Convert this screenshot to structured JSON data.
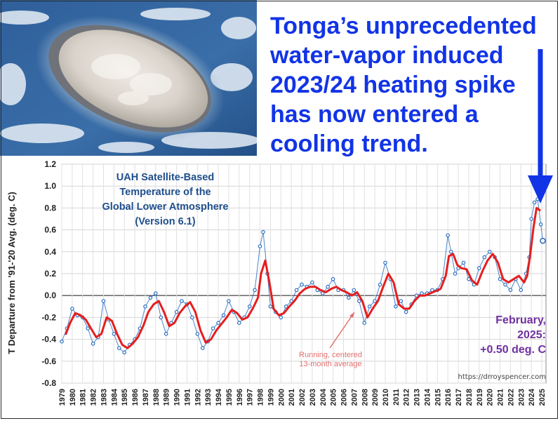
{
  "headline": {
    "lines": [
      "Tonga’s unprecedented",
      "water-vapor induced",
      "2023/24 heating spike",
      "has now entered a",
      "cooling trend."
    ],
    "color": "#1234e6"
  },
  "annotation": {
    "lines": [
      "UAH Satellite-Based",
      "Temperature of the",
      "Global Lower Atmosphere",
      "(Version 6.1)"
    ]
  },
  "current_value": {
    "lines": [
      "February,",
      "2025:",
      "+0.50 deg. C"
    ],
    "color": "#7030a0"
  },
  "running_label": {
    "lines": [
      "Running, centered",
      "13-month average"
    ]
  },
  "credit": "https://drroyspencer.com",
  "chart_data": {
    "type": "line",
    "title": "UAH Satellite-Based Temperature of the Global Lower Atmosphere (Version 6.1)",
    "ylabel": "T Departure from '91-'20 Avg. (deg. C)",
    "xlabel": "",
    "ylim": [
      -0.8,
      1.2
    ],
    "yticks": [
      "1.2",
      "1.0",
      "0.8",
      "0.6",
      "0.4",
      "0.2",
      "0.0",
      "-0.2",
      "-0.4",
      "-0.6",
      "-0.8"
    ],
    "xticks": [
      "1979",
      "1980",
      "1981",
      "1982",
      "1983",
      "1984",
      "1985",
      "1986",
      "1987",
      "1988",
      "1989",
      "1990",
      "1991",
      "1992",
      "1993",
      "1994",
      "1995",
      "1996",
      "1997",
      "1998",
      "1999",
      "2000",
      "2001",
      "2002",
      "2003",
      "2004",
      "2005",
      "2006",
      "2007",
      "2008",
      "2009",
      "2010",
      "2011",
      "2012",
      "2013",
      "2014",
      "2015",
      "2016",
      "2017",
      "2018",
      "2019",
      "2020",
      "2021",
      "2022",
      "2023",
      "2024",
      "2025"
    ],
    "grid": true,
    "series": [
      {
        "name": "Monthly",
        "color": "#2e6fbf",
        "x": [
          1979.0,
          1979.5,
          1980.0,
          1980.5,
          1981.0,
          1981.5,
          1982.0,
          1982.5,
          1983.0,
          1983.5,
          1984.0,
          1984.5,
          1985.0,
          1985.5,
          1986.0,
          1986.5,
          1987.0,
          1987.5,
          1988.0,
          1988.5,
          1989.0,
          1989.5,
          1990.0,
          1990.5,
          1991.0,
          1991.5,
          1992.0,
          1992.5,
          1993.0,
          1993.5,
          1994.0,
          1994.5,
          1995.0,
          1995.5,
          1996.0,
          1996.5,
          1997.0,
          1997.5,
          1998.0,
          1998.3,
          1998.7,
          1999.0,
          1999.5,
          2000.0,
          2000.5,
          2001.0,
          2001.5,
          2002.0,
          2002.5,
          2003.0,
          2003.5,
          2004.0,
          2004.5,
          2005.0,
          2005.5,
          2006.0,
          2006.5,
          2007.0,
          2007.5,
          2008.0,
          2008.5,
          2009.0,
          2009.5,
          2010.0,
          2010.5,
          2011.0,
          2011.5,
          2012.0,
          2012.5,
          2013.0,
          2013.5,
          2014.0,
          2014.5,
          2015.0,
          2015.5,
          2016.0,
          2016.3,
          2016.7,
          2017.0,
          2017.5,
          2018.0,
          2018.5,
          2019.0,
          2019.5,
          2020.0,
          2020.5,
          2021.0,
          2021.5,
          2022.0,
          2022.5,
          2023.0,
          2023.5,
          2023.8,
          2024.0,
          2024.3,
          2024.6,
          2024.9,
          2025.1
        ],
        "y": [
          -0.42,
          -0.3,
          -0.12,
          -0.18,
          -0.2,
          -0.3,
          -0.44,
          -0.38,
          -0.05,
          -0.22,
          -0.35,
          -0.48,
          -0.52,
          -0.45,
          -0.4,
          -0.3,
          -0.1,
          -0.02,
          0.02,
          -0.2,
          -0.35,
          -0.25,
          -0.15,
          -0.05,
          -0.08,
          -0.2,
          -0.35,
          -0.48,
          -0.42,
          -0.3,
          -0.25,
          -0.18,
          -0.05,
          -0.15,
          -0.25,
          -0.2,
          -0.1,
          0.05,
          0.45,
          0.58,
          0.2,
          -0.1,
          -0.15,
          -0.2,
          -0.1,
          -0.05,
          0.05,
          0.1,
          0.08,
          0.12,
          0.05,
          0.02,
          0.08,
          0.15,
          0.05,
          0.05,
          -0.02,
          0.05,
          -0.05,
          -0.25,
          -0.1,
          -0.05,
          0.1,
          0.3,
          0.15,
          -0.1,
          -0.05,
          -0.15,
          -0.08,
          0.0,
          0.02,
          0.02,
          0.05,
          0.05,
          0.15,
          0.55,
          0.4,
          0.2,
          0.25,
          0.3,
          0.15,
          0.1,
          0.25,
          0.35,
          0.4,
          0.35,
          0.15,
          0.1,
          0.05,
          0.15,
          0.05,
          0.2,
          0.35,
          0.7,
          0.85,
          0.88,
          0.65,
          0.5
        ]
      },
      {
        "name": "Running, centered 13-month average",
        "color": "#e61e1e",
        "x": [
          1979.4,
          1979.8,
          1980.3,
          1980.8,
          1981.3,
          1981.8,
          1982.3,
          1982.8,
          1983.3,
          1983.8,
          1984.3,
          1984.8,
          1985.3,
          1985.8,
          1986.3,
          1986.8,
          1987.3,
          1987.8,
          1988.3,
          1988.8,
          1989.3,
          1989.8,
          1990.3,
          1990.8,
          1991.3,
          1991.8,
          1992.3,
          1992.8,
          1993.3,
          1993.8,
          1994.3,
          1994.8,
          1995.3,
          1995.8,
          1996.3,
          1996.8,
          1997.3,
          1997.8,
          1998.1,
          1998.5,
          1998.9,
          1999.3,
          1999.8,
          2000.3,
          2000.8,
          2001.3,
          2001.8,
          2002.3,
          2002.8,
          2003.3,
          2003.8,
          2004.3,
          2004.8,
          2005.3,
          2005.8,
          2006.3,
          2006.8,
          2007.3,
          2007.8,
          2008.3,
          2008.8,
          2009.3,
          2009.8,
          2010.3,
          2010.8,
          2011.3,
          2011.8,
          2012.3,
          2012.8,
          2013.3,
          2013.8,
          2014.3,
          2014.8,
          2015.3,
          2015.8,
          2016.1,
          2016.5,
          2016.9,
          2017.3,
          2017.8,
          2018.3,
          2018.8,
          2019.3,
          2019.8,
          2020.3,
          2020.8,
          2021.3,
          2021.8,
          2022.3,
          2022.8,
          2023.3,
          2023.6,
          2023.9,
          2024.2,
          2024.5,
          2024.8
        ],
        "y": [
          -0.35,
          -0.25,
          -0.16,
          -0.18,
          -0.22,
          -0.3,
          -0.38,
          -0.35,
          -0.2,
          -0.23,
          -0.35,
          -0.45,
          -0.48,
          -0.44,
          -0.38,
          -0.28,
          -0.15,
          -0.08,
          -0.05,
          -0.15,
          -0.28,
          -0.25,
          -0.16,
          -0.1,
          -0.06,
          -0.15,
          -0.32,
          -0.43,
          -0.4,
          -0.32,
          -0.26,
          -0.2,
          -0.13,
          -0.16,
          -0.22,
          -0.2,
          -0.12,
          -0.02,
          0.2,
          0.32,
          0.12,
          -0.12,
          -0.18,
          -0.16,
          -0.1,
          -0.05,
          0.02,
          0.06,
          0.08,
          0.08,
          0.05,
          0.03,
          0.06,
          0.08,
          0.05,
          0.03,
          0.0,
          0.03,
          -0.05,
          -0.2,
          -0.12,
          -0.05,
          0.08,
          0.2,
          0.12,
          -0.08,
          -0.12,
          -0.12,
          -0.05,
          0.0,
          0.0,
          0.02,
          0.04,
          0.06,
          0.18,
          0.36,
          0.38,
          0.28,
          0.25,
          0.24,
          0.14,
          0.1,
          0.22,
          0.32,
          0.38,
          0.3,
          0.15,
          0.12,
          0.15,
          0.18,
          0.12,
          0.18,
          0.38,
          0.62,
          0.8,
          0.78
        ]
      }
    ]
  }
}
